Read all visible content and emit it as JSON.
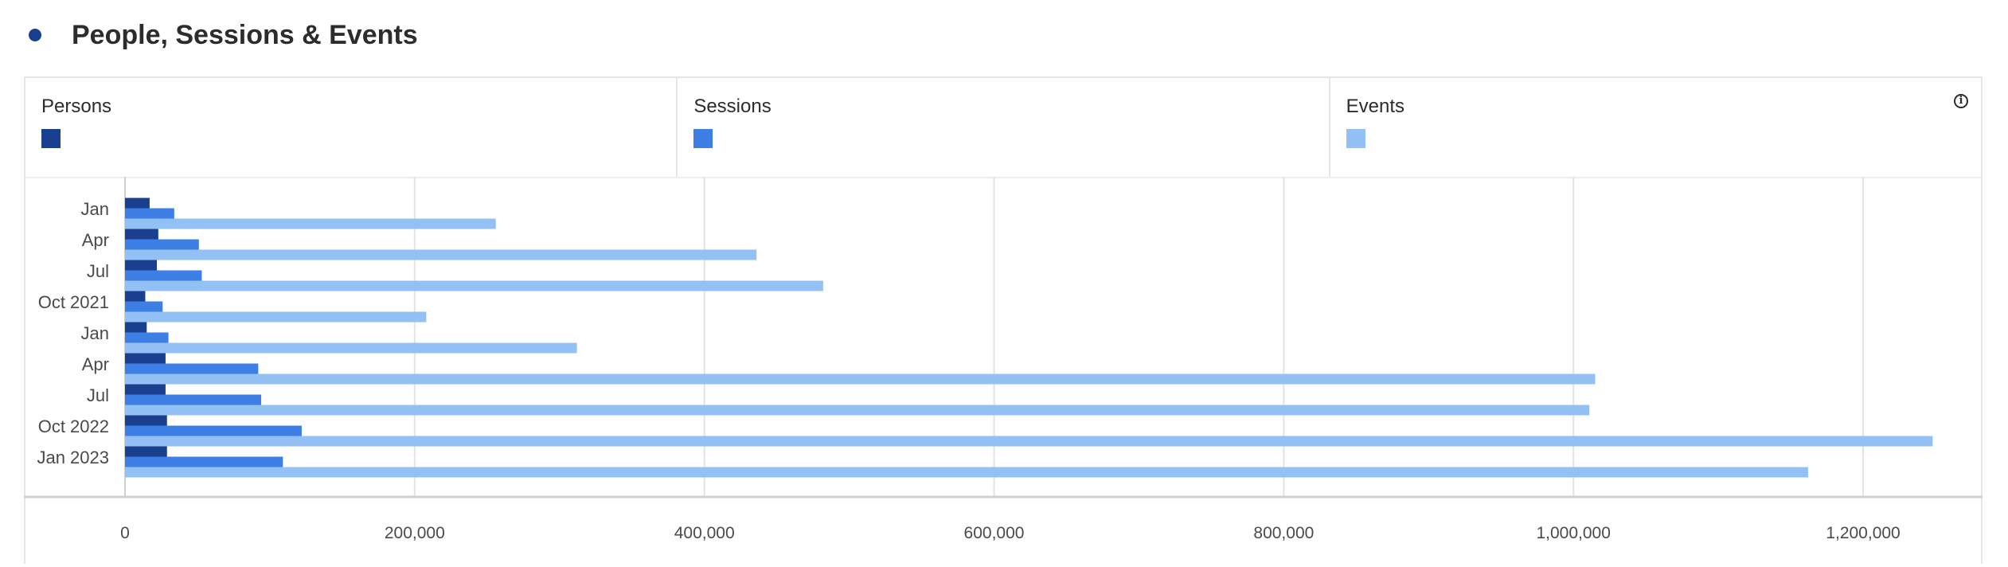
{
  "title": "People, Sessions & Events",
  "colors": {
    "title_dot": "#1b3f8f",
    "persons": "#1b3f8f",
    "sessions": "#3d7fe4",
    "events": "#94c1f5",
    "grid": "#e3e3e3",
    "axis": "#cfcfcf"
  },
  "icons": {
    "info": "info-icon"
  },
  "legend": [
    {
      "label": "Persons",
      "color": "#1b3f8f"
    },
    {
      "label": "Sessions",
      "color": "#3d7fe4"
    },
    {
      "label": "Events",
      "color": "#94c1f5"
    }
  ],
  "chart_data": {
    "type": "bar",
    "orientation": "horizontal",
    "categories": [
      "Jan",
      "Apr",
      "Jul",
      "Oct 2021",
      "Jan",
      "Apr",
      "Jul",
      "Oct 2022",
      "Jan 2023"
    ],
    "series": [
      {
        "name": "Persons",
        "values": [
          17000,
          23000,
          22000,
          14000,
          15000,
          28000,
          28000,
          29000,
          29000
        ]
      },
      {
        "name": "Sessions",
        "values": [
          34000,
          51000,
          53000,
          26000,
          30000,
          92000,
          94000,
          122000,
          109000
        ]
      },
      {
        "name": "Events",
        "values": [
          256000,
          436000,
          482000,
          208000,
          312000,
          1015000,
          1011000,
          1248000,
          1162000
        ]
      }
    ],
    "xlim": [
      0,
      1250000
    ],
    "xticks": [
      0,
      200000,
      400000,
      600000,
      800000,
      1000000,
      1200000
    ],
    "xtick_labels": [
      "0",
      "200,000",
      "400,000",
      "600,000",
      "800,000",
      "1,000,000",
      "1,200,000"
    ],
    "grid": true,
    "legend_position": "top"
  }
}
